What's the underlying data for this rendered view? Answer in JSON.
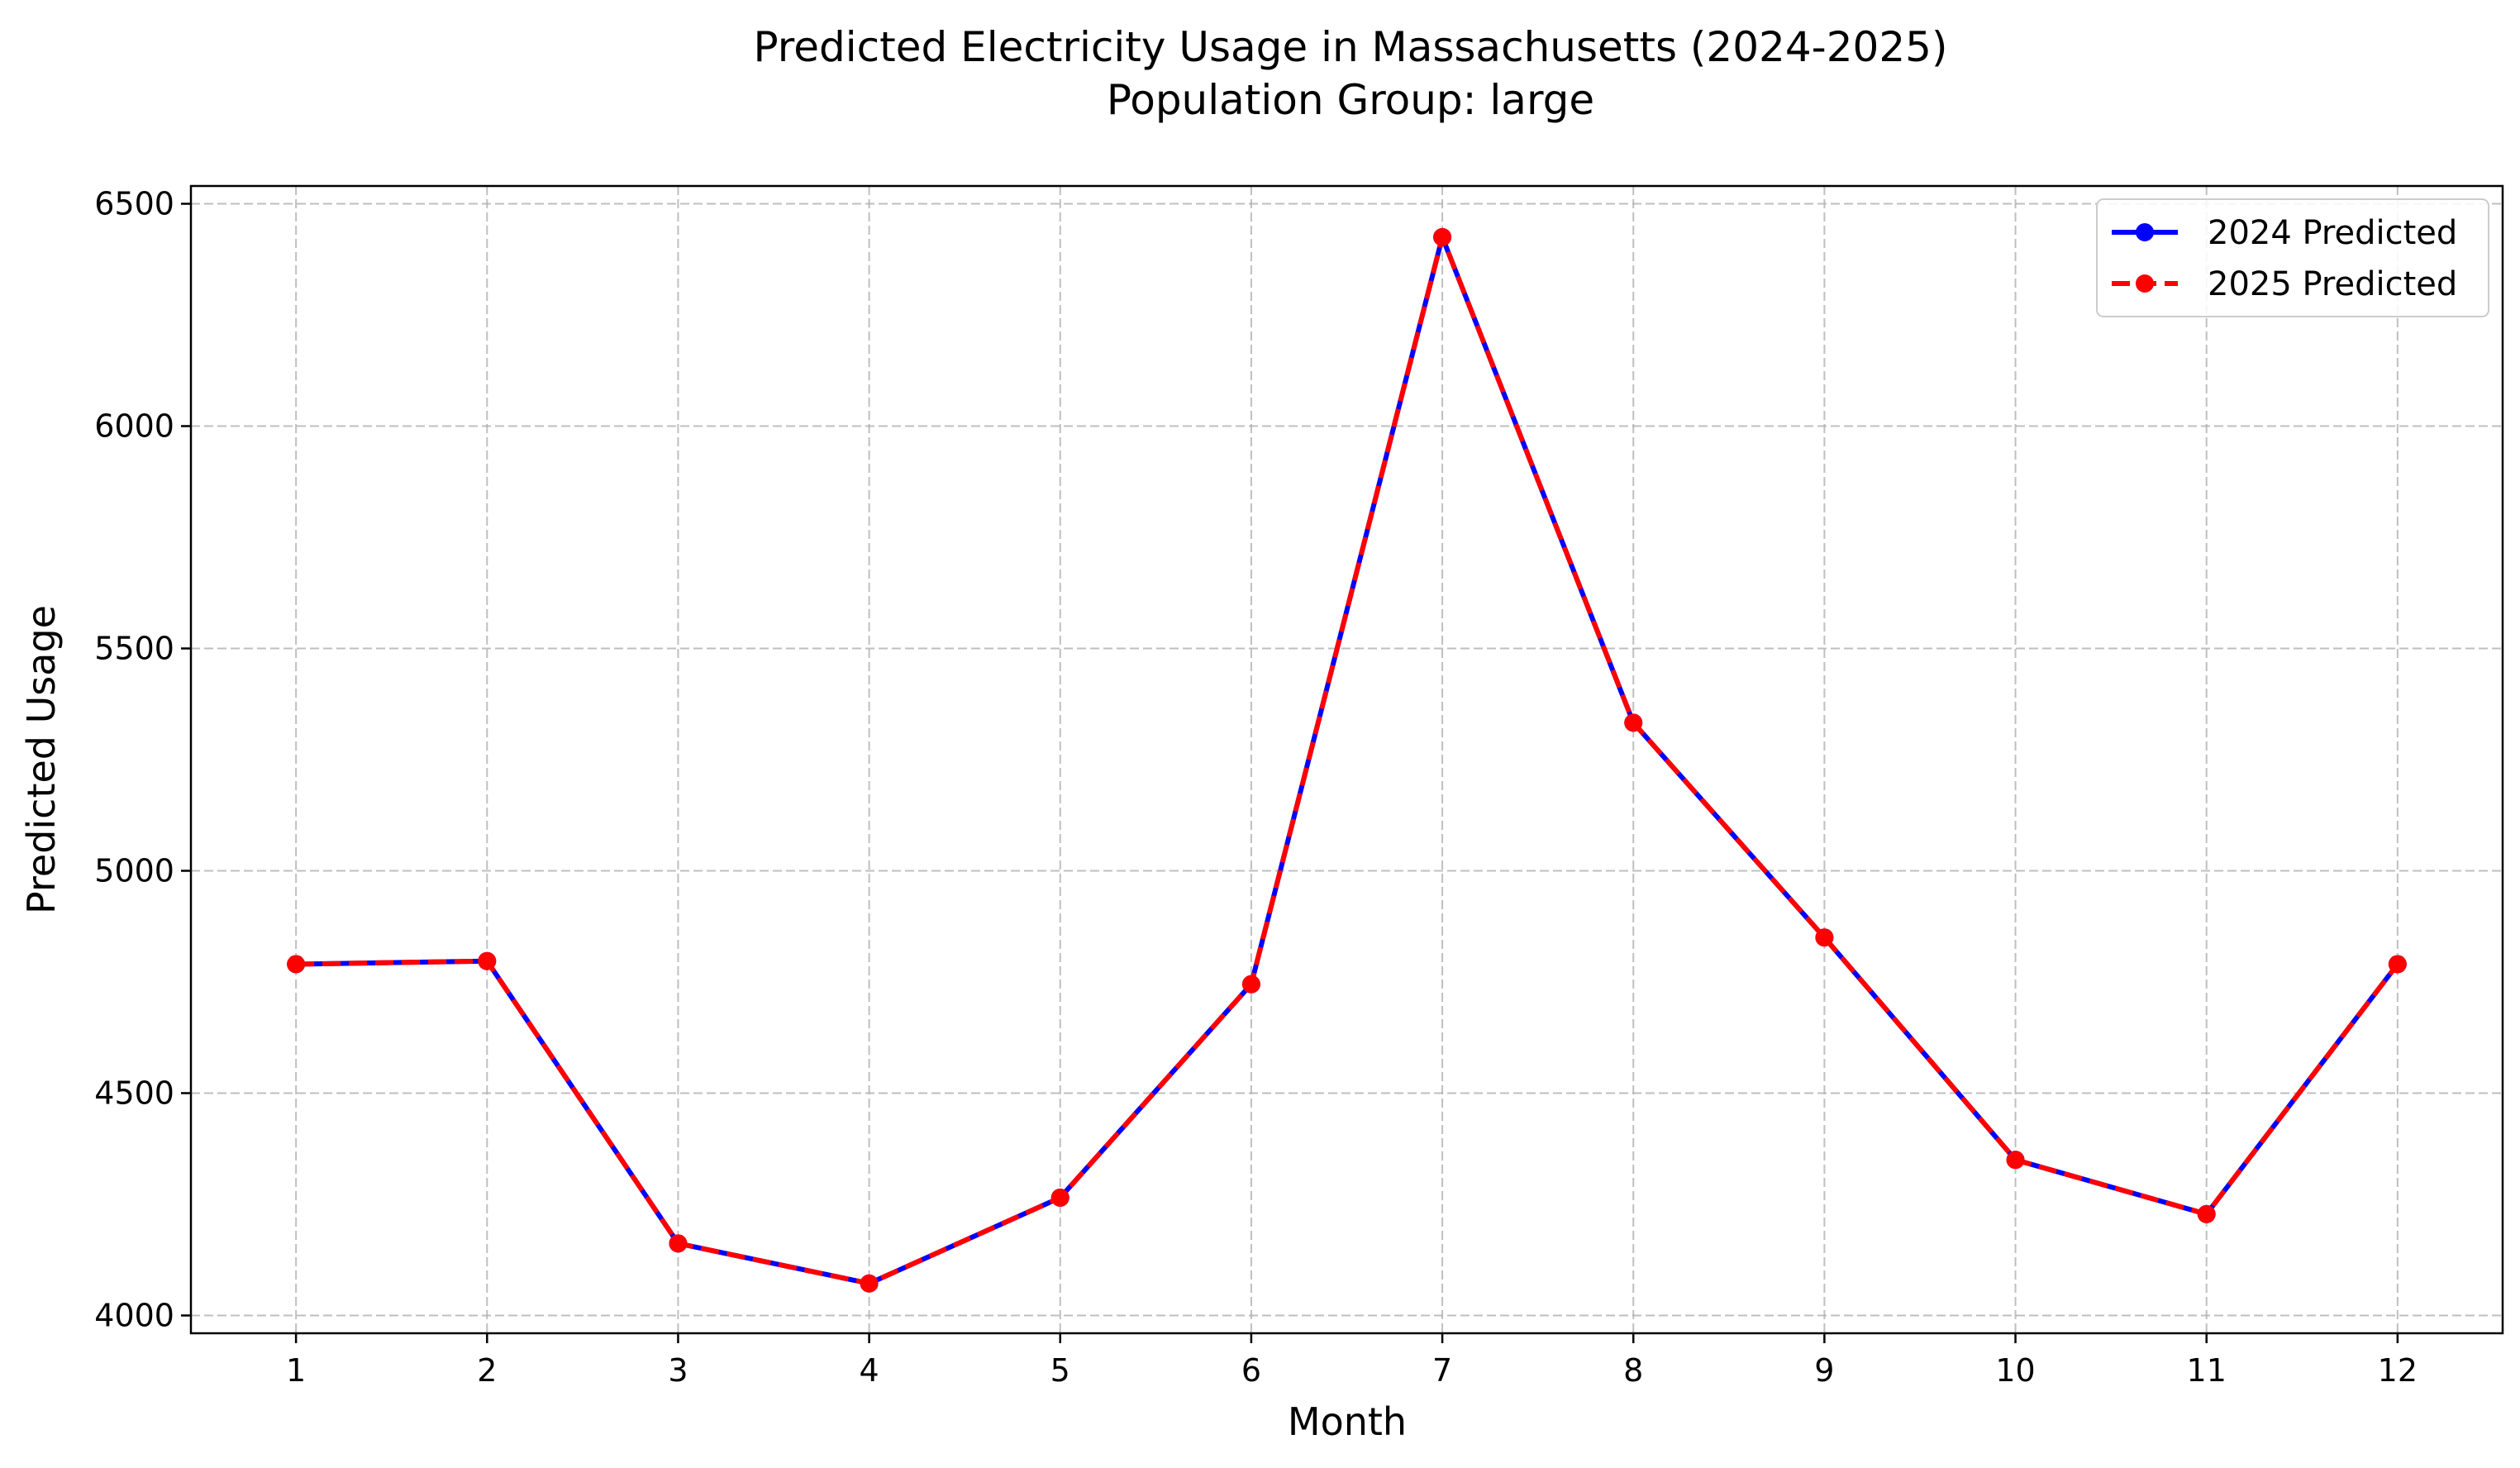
{
  "chart_data": {
    "type": "line",
    "title": "Predicted Electricity Usage in Massachusetts (2024-2025)",
    "subtitle": "Population Group: large",
    "xlabel": "Month",
    "ylabel": "Predicted Usage",
    "x": [
      1,
      2,
      3,
      4,
      5,
      6,
      7,
      8,
      9,
      10,
      11,
      12
    ],
    "xlim": [
      0.45,
      12.55
    ],
    "ylim": [
      3960,
      6540
    ],
    "yticks": [
      4000,
      4500,
      5000,
      5500,
      6000,
      6500
    ],
    "grid": true,
    "legend_position": "top-right",
    "series": [
      {
        "name": "2024 Predicted",
        "color": "#0000ff",
        "line_style": "solid",
        "marker": "circle",
        "values": [
          4790,
          4797,
          4162,
          4072,
          4265,
          4745,
          6425,
          5333,
          4850,
          4350,
          4228,
          4790
        ]
      },
      {
        "name": "2025 Predicted",
        "color": "#ff0000",
        "line_style": "dashed",
        "marker": "circle",
        "values": [
          4790,
          4797,
          4162,
          4072,
          4265,
          4745,
          6425,
          5333,
          4850,
          4350,
          4228,
          4790
        ]
      }
    ]
  }
}
